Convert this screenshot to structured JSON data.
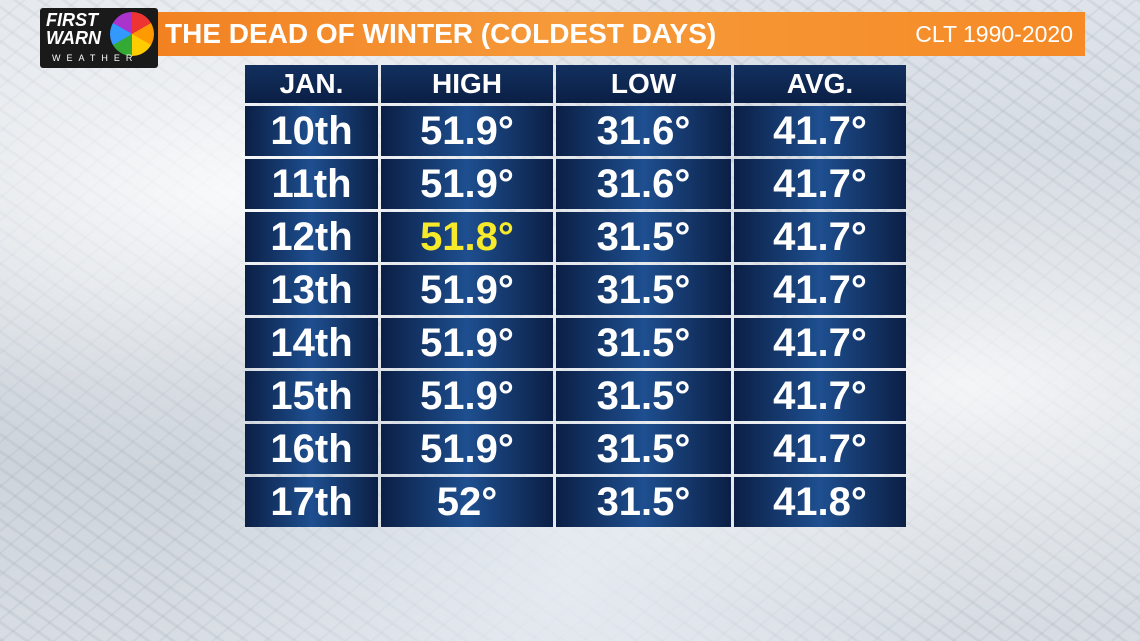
{
  "logo": {
    "line1": "FIRST",
    "line2": "WARN",
    "line3": "WEATHER"
  },
  "header": {
    "title": "THE DEAD OF WINTER (COLDEST DAYS)",
    "subtitle": "CLT 1990-2020"
  },
  "table": {
    "columns": [
      "JAN.",
      "HIGH",
      "LOW",
      "AVG."
    ],
    "rows": [
      [
        "10th",
        "51.9°",
        "31.6°",
        "41.7°"
      ],
      [
        "11th",
        "51.9°",
        "31.6°",
        "41.7°"
      ],
      [
        "12th",
        "51.8°",
        "31.5°",
        "41.7°"
      ],
      [
        "13th",
        "51.9°",
        "31.5°",
        "41.7°"
      ],
      [
        "14th",
        "51.9°",
        "31.5°",
        "41.7°"
      ],
      [
        "15th",
        "51.9°",
        "31.5°",
        "41.7°"
      ],
      [
        "16th",
        "51.9°",
        "31.5°",
        "41.7°"
      ],
      [
        "17th",
        "52°",
        "31.5°",
        "41.8°"
      ]
    ]
  }
}
